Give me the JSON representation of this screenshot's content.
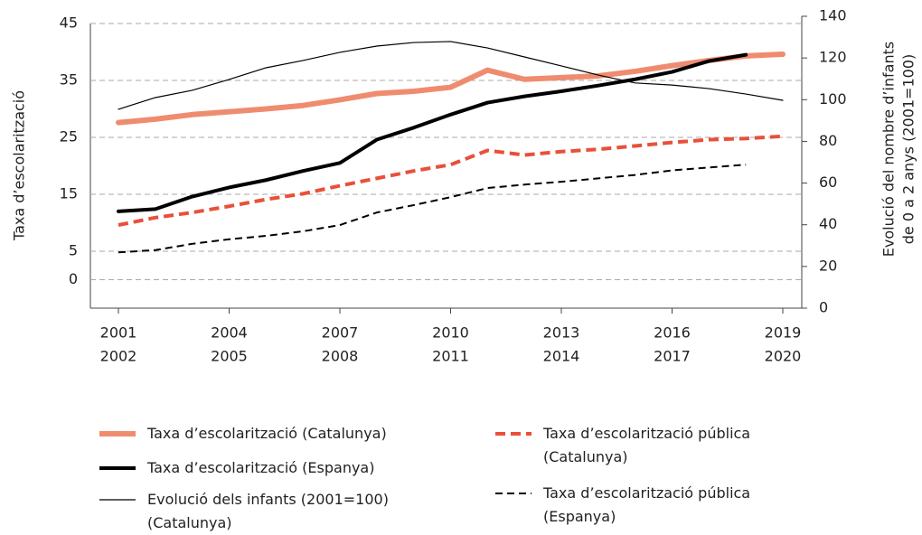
{
  "chart_data": {
    "type": "line",
    "y_label": "Taxa d’escolarització",
    "y2_label": [
      "Evolució del nombre d’infants",
      "de 0 a 2 anys (2001=100)"
    ],
    "categories": [
      [
        "2001",
        "2002"
      ],
      null,
      null,
      [
        "2004",
        "2005"
      ],
      null,
      null,
      [
        "2007",
        "2008"
      ],
      null,
      null,
      [
        "2010",
        "2011"
      ],
      null,
      null,
      [
        "2013",
        "2014"
      ],
      null,
      null,
      [
        "2016",
        "2017"
      ],
      null,
      null,
      [
        "2019",
        "2020"
      ]
    ],
    "ylim": [
      -5,
      45
    ],
    "yticks": [
      0,
      5,
      15,
      25,
      35,
      45
    ],
    "y2lim": [
      0,
      140
    ],
    "y2ticks": [
      0,
      20,
      40,
      60,
      80,
      100,
      120,
      140
    ],
    "grid": true,
    "series": [
      {
        "name": "Taxa d’escolarització (Catalunya)",
        "color": "#ef8c6f",
        "style": "solid",
        "width": 6,
        "values": [
          27.6,
          28.2,
          29.0,
          29.5,
          30.0,
          30.6,
          31.6,
          32.7,
          33.1,
          33.8,
          36.8,
          35.2,
          35.5,
          35.8,
          36.6,
          37.6,
          38.5,
          39.3,
          39.6
        ]
      },
      {
        "name": "Taxa d’escolarització (Espanya)",
        "color": "#000000",
        "style": "solid",
        "width": 4,
        "values": [
          12.0,
          12.4,
          14.6,
          16.2,
          17.5,
          19.1,
          20.5,
          24.6,
          26.7,
          29.0,
          31.1,
          32.2,
          33.1,
          34.1,
          35.2,
          36.5,
          38.4,
          39.5,
          null
        ]
      },
      {
        "name": "Evolució dels infants (2001=100) (Catalunya)",
        "color": "#000000",
        "style": "solid",
        "width": 1.2,
        "axis": "y2",
        "values": [
          95.4,
          101,
          104.5,
          109.7,
          115.3,
          118.8,
          122.7,
          125.7,
          127.4,
          127.9,
          124.8,
          120.5,
          116.2,
          111.8,
          108,
          107,
          105.3,
          102.7,
          99.7
        ]
      },
      {
        "name": "Taxa d’escolarització pública (Catalunya)",
        "color": "#e8503a",
        "style": "dashed",
        "width": 4,
        "values": [
          9.6,
          10.9,
          11.8,
          12.9,
          14.1,
          15.1,
          16.5,
          17.8,
          19.1,
          20.2,
          22.7,
          21.9,
          22.5,
          22.9,
          23.5,
          24.1,
          24.6,
          24.8,
          25.2
        ]
      },
      {
        "name": "Taxa d’escolarització pública (Espanya)",
        "color": "#000000",
        "style": "dashed",
        "width": 2,
        "values": [
          4.8,
          5.2,
          6.3,
          7.1,
          7.7,
          8.5,
          9.6,
          11.8,
          13.1,
          14.5,
          16.1,
          16.7,
          17.2,
          17.8,
          18.4,
          19.2,
          19.7,
          20.2,
          null
        ]
      }
    ]
  }
}
